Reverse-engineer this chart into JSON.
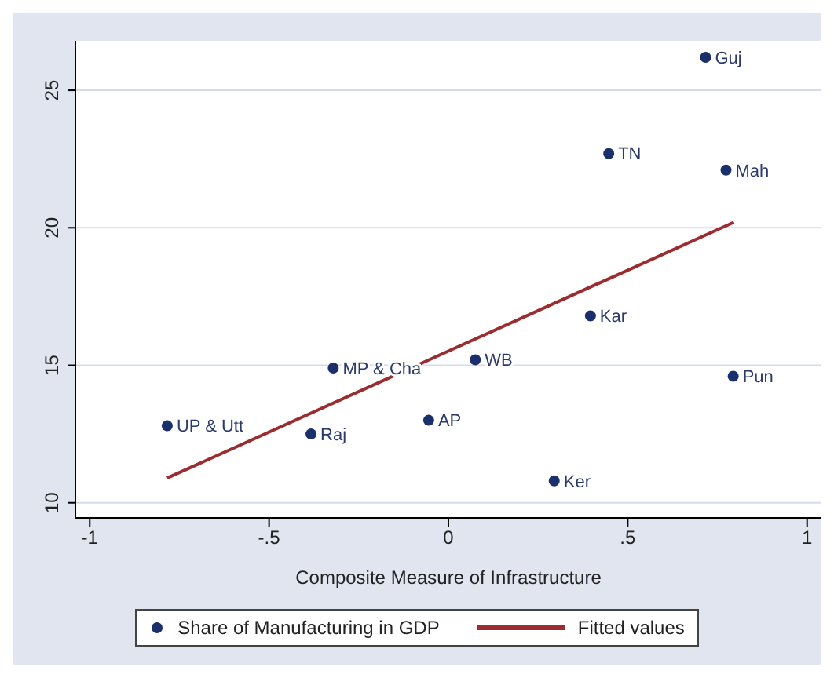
{
  "chart_data": {
    "type": "scatter",
    "xlabel": "Composite Measure of Infrastructure",
    "xlim": [
      -1.04,
      1.04
    ],
    "xticks": [
      {
        "value": -1,
        "label": "-1"
      },
      {
        "value": -0.5,
        "label": "-.5"
      },
      {
        "value": 0,
        "label": "0"
      },
      {
        "value": 0.5,
        "label": ".5"
      },
      {
        "value": 1,
        "label": "1"
      }
    ],
    "ylim": [
      9.45,
      26.8
    ],
    "yticks": [
      10,
      15,
      20,
      25
    ],
    "grid": "y",
    "legend": "bottom",
    "series": [
      {
        "name": "Share of Manufacturing in GDP",
        "color": "#1a2f6b",
        "marker": "circle",
        "x": [
          0.717,
          0.447,
          0.774,
          0.396,
          0.075,
          -0.321,
          0.794,
          -0.784,
          -0.383,
          -0.055,
          0.295
        ],
        "values": [
          26.2,
          22.7,
          22.1,
          16.8,
          15.2,
          14.9,
          14.6,
          12.8,
          12.5,
          13.0,
          10.8
        ]
      },
      {
        "name": "Fitted values",
        "type": "line",
        "color": "#9b2d30",
        "x": [
          -0.784,
          0.796
        ],
        "values": [
          10.9,
          20.2
        ]
      }
    ],
    "annotations": [
      {
        "text": "Guj",
        "x": 0.717,
        "y": 26.2
      },
      {
        "text": "TN",
        "x": 0.447,
        "y": 22.7
      },
      {
        "text": "Mah",
        "x": 0.774,
        "y": 22.1
      },
      {
        "text": "Kar",
        "x": 0.396,
        "y": 16.8
      },
      {
        "text": "WB",
        "x": 0.075,
        "y": 15.2
      },
      {
        "text": "MP & Cha",
        "x": -0.321,
        "y": 14.9
      },
      {
        "text": "Pun",
        "x": 0.794,
        "y": 14.6
      },
      {
        "text": "UP & Utt",
        "x": -0.784,
        "y": 12.8
      },
      {
        "text": "Raj",
        "x": -0.383,
        "y": 12.5
      },
      {
        "text": "AP",
        "x": -0.055,
        "y": 13.0
      },
      {
        "text": "Ker",
        "x": 0.295,
        "y": 10.8
      }
    ]
  }
}
